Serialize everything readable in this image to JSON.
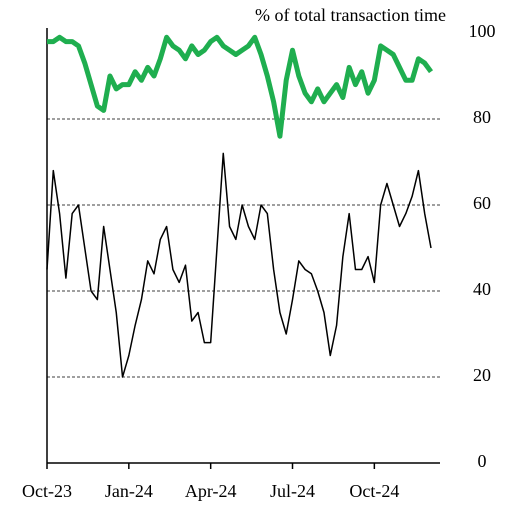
{
  "chart_data": {
    "type": "line",
    "title": "% of total transaction time",
    "categories": [
      "Oct-23",
      null,
      null,
      null,
      null,
      null,
      null,
      null,
      null,
      null,
      null,
      null,
      null,
      "Jan-24",
      null,
      null,
      null,
      null,
      null,
      null,
      null,
      null,
      null,
      null,
      null,
      null,
      "Apr-24",
      null,
      null,
      null,
      null,
      null,
      null,
      null,
      null,
      null,
      null,
      null,
      null,
      "Jul-24",
      null,
      null,
      null,
      null,
      null,
      null,
      null,
      null,
      null,
      null,
      null,
      null,
      "Oct-24",
      null,
      null,
      null,
      null,
      null,
      null,
      null,
      null,
      null
    ],
    "series": [
      {
        "color": "#1fae4f",
        "width": 5,
        "values": [
          98,
          98,
          99,
          98,
          98,
          97,
          93,
          88,
          83,
          82,
          90,
          87,
          88,
          88,
          91,
          89,
          92,
          90,
          94,
          99,
          97,
          96,
          94,
          97,
          95,
          96,
          98,
          99,
          97,
          96,
          95,
          96,
          97,
          99,
          95,
          90,
          84,
          76,
          89,
          96,
          90,
          86,
          84,
          87,
          84,
          86,
          88,
          85,
          92,
          88,
          91,
          86,
          89,
          97,
          96,
          95,
          92,
          89,
          89,
          94,
          93,
          91
        ]
      },
      {
        "color": "#000000",
        "width": 1.5,
        "values": [
          45,
          68,
          58,
          43,
          58,
          60,
          50,
          40,
          38,
          55,
          45,
          35,
          20,
          25,
          32,
          38,
          47,
          44,
          52,
          55,
          45,
          42,
          46,
          33,
          35,
          28,
          28,
          50,
          72,
          55,
          52,
          60,
          55,
          52,
          60,
          58,
          45,
          35,
          30,
          38,
          47,
          45,
          44,
          40,
          35,
          25,
          32,
          48,
          58,
          45,
          45,
          48,
          42,
          60,
          65,
          60,
          55,
          58,
          62,
          68,
          58,
          50
        ]
      }
    ],
    "ylim": [
      0,
      100
    ],
    "yticks": [
      0,
      20,
      40,
      60,
      80,
      100
    ],
    "grid": true
  }
}
